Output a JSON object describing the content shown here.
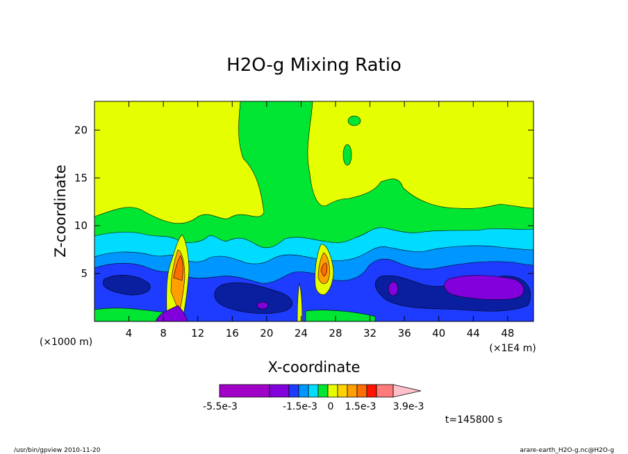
{
  "chart_data": {
    "type": "heatmap",
    "title": "H2O-g Mixing Ratio",
    "xlabel": "X-coordinate",
    "ylabel": "Z-coordinate",
    "x_unit_left": "(×1000 m)",
    "x_unit_right": "(×1E4 m)",
    "xlim": [
      0,
      51
    ],
    "ylim": [
      0,
      23
    ],
    "xticks": [
      4,
      8,
      12,
      16,
      20,
      24,
      28,
      32,
      36,
      40,
      44,
      48
    ],
    "yticks": [
      5,
      10,
      15,
      20
    ],
    "colorbar": {
      "colors": [
        "#a000c8",
        "#8200dc",
        "#1e3cff",
        "#0096ff",
        "#00dcff",
        "#00e632",
        "#e6ff00",
        "#ffd200",
        "#ffa000",
        "#ff6e00",
        "#ff1400",
        "#ff7a7a",
        "#ffc0cb"
      ],
      "labels": [
        "-5.5e-3",
        "-1.5e-3",
        "0",
        "1.5e-3",
        "3.9e-3"
      ]
    },
    "time_label": "t=145800 s",
    "footer_left": "/usr/bin/gpview  2010-11-20",
    "footer_right": "arare-earth_H2O-g.nc@H2O-g"
  },
  "palette": {
    "yellow": "#e6ff00",
    "green": "#00e632",
    "cyan": "#00dcff",
    "lightblue": "#0096ff",
    "blue": "#1e3cff",
    "darkblue": "#0a1ea0",
    "purple": "#8200dc",
    "magenta": "#a000c8",
    "orange": "#ffa000",
    "darkorange": "#ff6e00"
  }
}
